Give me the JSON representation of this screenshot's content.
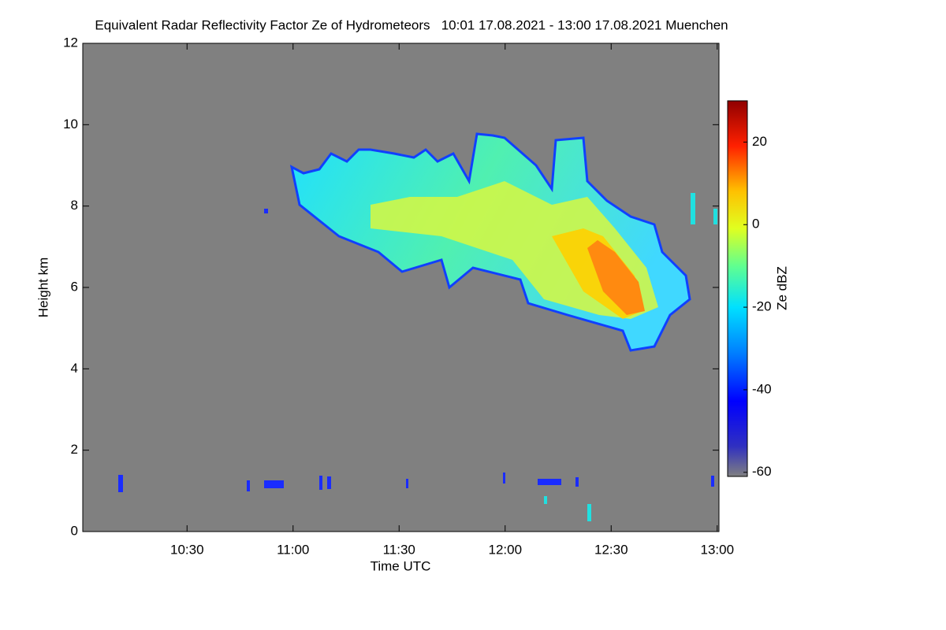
{
  "chart_data": {
    "type": "heatmap",
    "title": "Equivalent Radar Reflectivity Factor Ze of Hydrometeors   10:01 17.08.2021 - 13:00 17.08.2021 Muenchen",
    "x_label": "Time UTC",
    "y_label": "Height km",
    "xlim": [
      600.5,
      780.5
    ],
    "xticks": [
      {
        "value": 630,
        "label": "10:30"
      },
      {
        "value": 660,
        "label": "11:00"
      },
      {
        "value": 690,
        "label": "11:30"
      },
      {
        "value": 720,
        "label": "12:00"
      },
      {
        "value": 750,
        "label": "12:30"
      },
      {
        "value": 780,
        "label": "13:00"
      }
    ],
    "ylim": [
      0,
      12
    ],
    "yticks": [
      0,
      2,
      4,
      6,
      8,
      10,
      12
    ],
    "colorbar": {
      "label": "Ze dBZ",
      "clim": [
        -61,
        30
      ],
      "ticks": [
        -60,
        -40,
        -20,
        0,
        20
      ]
    }
  }
}
